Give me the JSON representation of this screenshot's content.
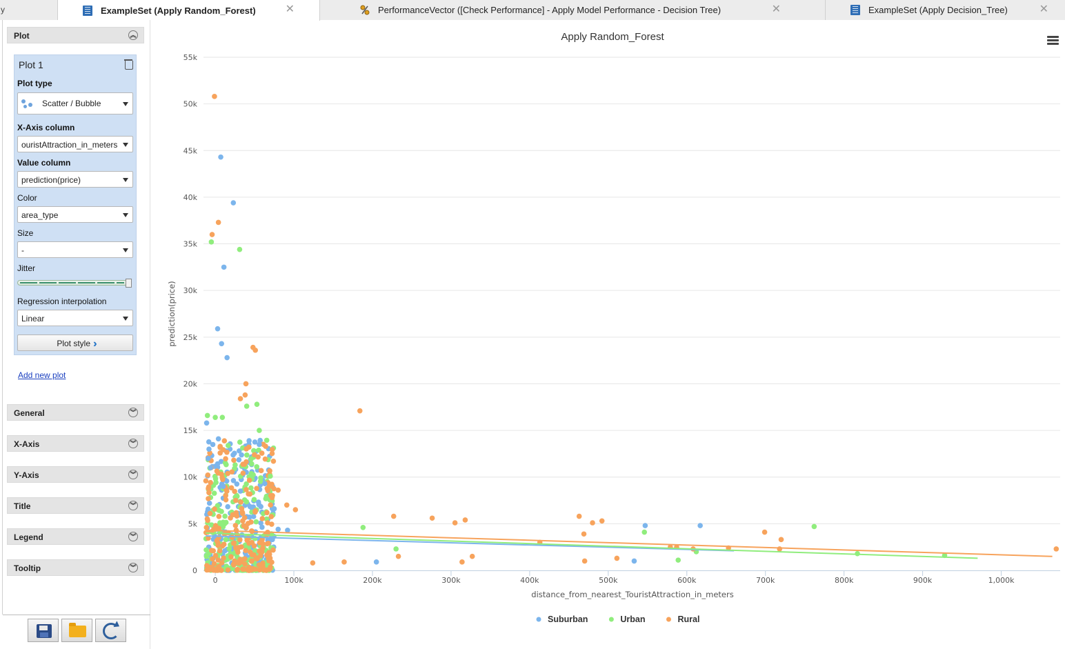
{
  "tabs": [
    {
      "label": "ExampleSet (Apply Random_Forest)",
      "active": true,
      "icon": "table-icon"
    },
    {
      "label": "PerformanceVector ([Check Performance] - Apply Model Performance - Decision Tree)",
      "active": false,
      "icon": "performance-icon"
    },
    {
      "label": "ExampleSet (Apply Decision_Tree)",
      "active": false,
      "icon": "table-icon"
    }
  ],
  "left_tab_stub": "y",
  "close_glyph": "✕",
  "sidebar": {
    "plot_section": "Plot",
    "plot": {
      "title": "Plot 1",
      "plot_type_label": "Plot type",
      "plot_type_value": "Scatter / Bubble",
      "x_axis_label": "X-Axis column",
      "x_axis_value": "ouristAttraction_in_meters",
      "value_label": "Value column",
      "value_value": "prediction(price)",
      "color_label": "Color",
      "color_value": "area_type",
      "size_label": "Size",
      "size_value": "-",
      "jitter_label": "Jitter",
      "jitter_level": 1.0,
      "regression_label": "Regression interpolation",
      "regression_value": "Linear",
      "plot_style_button": "Plot style"
    },
    "add_new_plot": "Add new plot",
    "sections": [
      "General",
      "X-Axis",
      "Y-Axis",
      "Title",
      "Legend",
      "Tooltip"
    ]
  },
  "colors": {
    "Suburban": "#7cb5ec",
    "Urban": "#90ed7d",
    "Rural": "#f7a35c",
    "panel_blue": "#cfe0f4",
    "gridline": "#e6e6e6"
  },
  "chart_data": {
    "type": "scatter",
    "title": "Apply Random_Forest",
    "xlabel": "distance_from_nearest_TouristAttraction_in_meters",
    "ylabel": "prediction(price)",
    "xlim": [
      -15000,
      1075000
    ],
    "ylim": [
      0,
      55000
    ],
    "x_ticks": [
      0,
      100000,
      200000,
      300000,
      400000,
      500000,
      600000,
      700000,
      800000,
      900000,
      1000000
    ],
    "x_tick_labels": [
      "0",
      "100k",
      "200k",
      "300k",
      "400k",
      "500k",
      "600k",
      "700k",
      "800k",
      "900k",
      "1,000k"
    ],
    "y_ticks": [
      0,
      5000,
      10000,
      15000,
      20000,
      25000,
      30000,
      35000,
      40000,
      45000,
      50000,
      55000
    ],
    "y_tick_labels": [
      "0",
      "5k",
      "10k",
      "15k",
      "20k",
      "25k",
      "30k",
      "35k",
      "40k",
      "45k",
      "50k",
      "55k"
    ],
    "grid": "horizontal",
    "legend_position": "bottom-center",
    "cluster": {
      "x_range": [
        -12000,
        75000
      ],
      "y_range": [
        0,
        14000
      ],
      "count_per_series": 220
    },
    "series": [
      {
        "name": "Suburban",
        "points": [
          [
            7000,
            44300
          ],
          [
            23000,
            39400
          ],
          [
            11000,
            32500
          ],
          [
            3000,
            25900
          ],
          [
            8000,
            24300
          ],
          [
            15000,
            22800
          ],
          [
            -11000,
            15800
          ],
          [
            4000,
            14100
          ],
          [
            -8000,
            13000
          ],
          [
            -9000,
            12000
          ],
          [
            56000,
            13500
          ],
          [
            -6000,
            11000
          ],
          [
            10000,
            9000
          ],
          [
            32000,
            8500
          ],
          [
            63000,
            9300
          ],
          [
            75000,
            6600
          ],
          [
            80000,
            4400
          ],
          [
            92000,
            4300
          ],
          [
            205000,
            900
          ],
          [
            533000,
            1000
          ],
          [
            547000,
            4800
          ],
          [
            617000,
            4800
          ]
        ],
        "regression": [
          [
            -12000,
            3700
          ],
          [
            660000,
            2100
          ]
        ]
      },
      {
        "name": "Urban",
        "points": [
          [
            -5000,
            35200
          ],
          [
            31000,
            34400
          ],
          [
            40000,
            17600
          ],
          [
            53000,
            17800
          ],
          [
            -10000,
            16600
          ],
          [
            0,
            16400
          ],
          [
            9000,
            16400
          ],
          [
            56000,
            15000
          ],
          [
            70000,
            10100
          ],
          [
            188000,
            4600
          ],
          [
            230000,
            2300
          ],
          [
            546000,
            4100
          ],
          [
            589000,
            1100
          ],
          [
            612000,
            2000
          ],
          [
            762000,
            4700
          ],
          [
            817000,
            1800
          ],
          [
            928000,
            1600
          ]
        ],
        "regression": [
          [
            -12000,
            4000
          ],
          [
            970000,
            1300
          ]
        ]
      },
      {
        "name": "Rural",
        "points": [
          [
            -1000,
            50800
          ],
          [
            4000,
            37300
          ],
          [
            -4000,
            36000
          ],
          [
            48000,
            23900
          ],
          [
            51000,
            23600
          ],
          [
            39000,
            20000
          ],
          [
            38000,
            18800
          ],
          [
            32000,
            18400
          ],
          [
            184000,
            17100
          ],
          [
            64000,
            13300
          ],
          [
            74000,
            11700
          ],
          [
            -12000,
            9600
          ],
          [
            80000,
            8600
          ],
          [
            91000,
            7000
          ],
          [
            102000,
            6500
          ],
          [
            227000,
            5800
          ],
          [
            276000,
            5600
          ],
          [
            318000,
            5400
          ],
          [
            305000,
            5100
          ],
          [
            463000,
            5800
          ],
          [
            480000,
            5100
          ],
          [
            492000,
            5300
          ],
          [
            699000,
            4100
          ],
          [
            720000,
            3300
          ],
          [
            469000,
            3900
          ],
          [
            413000,
            3000
          ],
          [
            579000,
            2500
          ],
          [
            587000,
            2500
          ],
          [
            608000,
            2300
          ],
          [
            653000,
            2400
          ],
          [
            718000,
            2300
          ],
          [
            1070000,
            2300
          ],
          [
            327000,
            1500
          ],
          [
            233000,
            1500
          ],
          [
            124000,
            800
          ],
          [
            164000,
            900
          ],
          [
            314000,
            900
          ],
          [
            470000,
            1000
          ],
          [
            511000,
            1300
          ]
        ],
        "regression": [
          [
            -12000,
            4300
          ],
          [
            1065000,
            1500
          ]
        ]
      }
    ]
  }
}
